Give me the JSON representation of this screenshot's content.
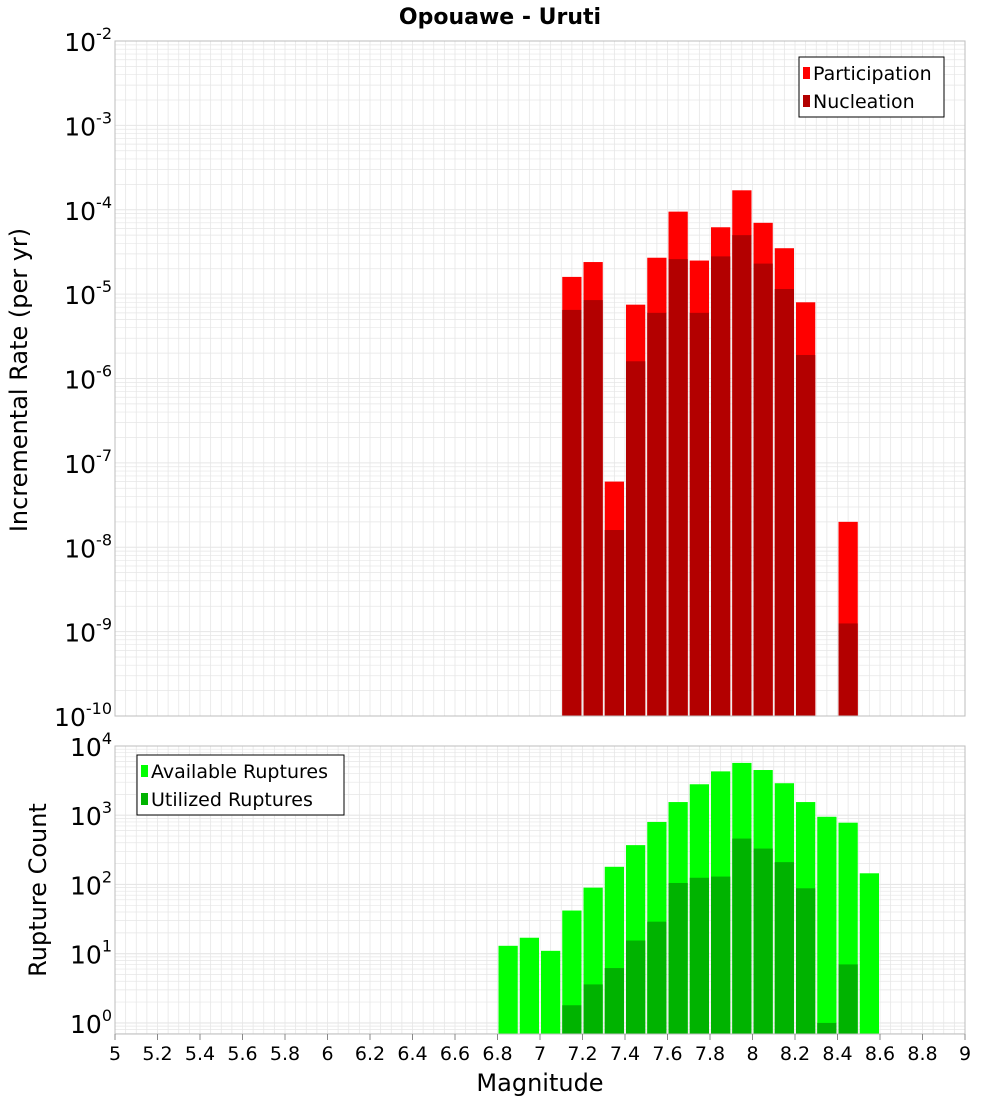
{
  "colors": {
    "participation": "#ff0000",
    "nucleation": "#b30000",
    "available": "#00ff00",
    "utilized": "#00b300",
    "grid": "#e6e6e6",
    "frame": "#bdbdbd"
  },
  "chart_data": {
    "type": "bar",
    "title": "Opouawe - Uruti",
    "xlabel": "Magnitude",
    "xlim": [
      5,
      9
    ],
    "x_tick_labels": [
      "5",
      "5.2",
      "5.4",
      "5.6",
      "5.8",
      "6",
      "6.2",
      "6.4",
      "6.6",
      "6.8",
      "7",
      "7.2",
      "7.4",
      "7.6",
      "7.8",
      "8",
      "8.2",
      "8.4",
      "8.6",
      "8.8",
      "9"
    ],
    "bin_width": 0.1,
    "panels": [
      {
        "name": "rate-panel",
        "ylabel": "Incremental Rate (per yr)",
        "yscale": "log",
        "ylim_exponent": [
          -10,
          -2
        ],
        "y_tick_labels": [
          {
            "base": "10",
            "exp": "-2"
          },
          {
            "base": "10",
            "exp": "-3"
          },
          {
            "base": "10",
            "exp": "-4"
          },
          {
            "base": "10",
            "exp": "-5"
          },
          {
            "base": "10",
            "exp": "-6"
          },
          {
            "base": "10",
            "exp": "-7"
          },
          {
            "base": "10",
            "exp": "-8"
          },
          {
            "base": "10",
            "exp": "-9"
          },
          {
            "base": "10",
            "exp": "-10"
          }
        ],
        "legend": {
          "position": "top-right",
          "entries": [
            "Participation",
            "Nucleation"
          ]
        },
        "series": [
          {
            "name": "Participation",
            "color_key": "participation",
            "x": [
              7.15,
              7.25,
              7.35,
              7.45,
              7.55,
              7.65,
              7.75,
              7.85,
              7.95,
              8.05,
              8.15,
              8.25,
              8.45
            ],
            "values": [
              1.6e-05,
              2.4e-05,
              6e-08,
              7.5e-06,
              2.7e-05,
              9.5e-05,
              2.5e-05,
              6.2e-05,
              0.00017,
              7e-05,
              3.5e-05,
              8e-06,
              2e-08
            ]
          },
          {
            "name": "Nucleation",
            "color_key": "nucleation",
            "x": [
              7.15,
              7.25,
              7.35,
              7.45,
              7.55,
              7.65,
              7.75,
              7.85,
              7.95,
              8.05,
              8.15,
              8.25,
              8.45
            ],
            "values": [
              6.5e-06,
              8.5e-06,
              1.6e-08,
              1.6e-06,
              6e-06,
              2.6e-05,
              6e-06,
              2.8e-05,
              5e-05,
              2.3e-05,
              1.15e-05,
              1.9e-06,
              1.25e-09
            ]
          }
        ]
      },
      {
        "name": "count-panel",
        "ylabel": "Rupture Count",
        "yscale": "log",
        "ylim_exponent": [
          -0.16,
          4
        ],
        "y_tick_labels": [
          {
            "base": "10",
            "exp": "4"
          },
          {
            "base": "10",
            "exp": "3"
          },
          {
            "base": "10",
            "exp": "2"
          },
          {
            "base": "10",
            "exp": "1"
          },
          {
            "base": "10",
            "exp": "0"
          }
        ],
        "legend": {
          "position": "top-left",
          "entries": [
            "Available Ruptures",
            "Utilized Ruptures"
          ]
        },
        "series": [
          {
            "name": "Available Ruptures",
            "color_key": "available",
            "x": [
              6.85,
              6.95,
              7.05,
              7.15,
              7.25,
              7.35,
              7.45,
              7.55,
              7.65,
              7.75,
              7.85,
              7.95,
              8.05,
              8.15,
              8.25,
              8.35,
              8.45,
              8.55
            ],
            "values": [
              13,
              17,
              11,
              42,
              90,
              180,
              370,
              800,
              1550,
              2800,
              4300,
              5700,
              4500,
              2900,
              1550,
              950,
              780,
              145
            ]
          },
          {
            "name": "Utilized Ruptures",
            "color_key": "utilized",
            "x": [
              7.15,
              7.25,
              7.35,
              7.45,
              7.55,
              7.65,
              7.75,
              7.85,
              7.95,
              8.05,
              8.15,
              8.25,
              8.35,
              8.45
            ],
            "values": [
              1.8,
              3.6,
              6.2,
              15.5,
              29,
              105,
              125,
              130,
              460,
              330,
              210,
              88,
              1,
              7
            ]
          }
        ]
      }
    ]
  }
}
